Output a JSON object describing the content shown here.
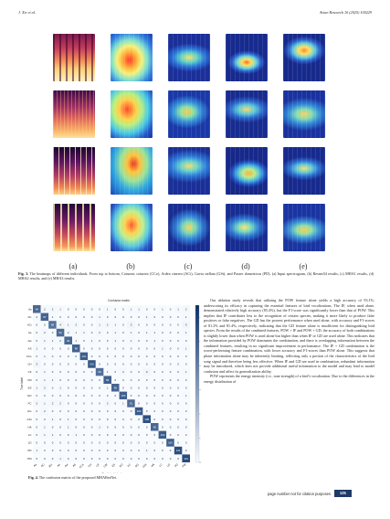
{
  "header": {
    "left": "J. Xie et al.",
    "right": "Avian Research 16 (2025) 100229"
  },
  "figure3": {
    "panel_labels": [
      "(a)",
      "(b)",
      "(c)",
      "(d)",
      "(e)"
    ],
    "caption_label": "Fig. 3.",
    "caption_text": " The heatmaps of different individuals. From top to bottom, Coturnix coturnix (CCo), Ardea cinerea (ACi), Gavia stellata (GSt), and Passer domesticus (PD). (a) Input spectrogram, (b) Resnet34 results, (c) MHA1 results, (d) MHA2 results, and (e) MHA3 results."
  },
  "figure4": {
    "caption_label": "Fig. 4.",
    "caption_text": " The confusion matrix of the proposed MHAResNet."
  },
  "chart_data": {
    "type": "heatmap",
    "title": "Confusion matrix",
    "xlabel": "Predicted label",
    "ylabel": "True label",
    "labels": [
      "Aa",
      "AC",
      "ACi",
      "Ae",
      "Aw",
      "AS",
      "CCo",
      "CH",
      "CF",
      "CM",
      "ES",
      "EO",
      "FC",
      "GG",
      "GSt",
      "HA",
      "LC",
      "LD",
      "PD",
      "PM"
    ],
    "colorbar_ticks": [
      0,
      20,
      40,
      60,
      80,
      100,
      120
    ],
    "vmax": 130,
    "matrix": [
      [
        94,
        2,
        2,
        1,
        0,
        0,
        0,
        0,
        0,
        1,
        0,
        0,
        1,
        1,
        0,
        0,
        1,
        0,
        1,
        2
      ],
      [
        2,
        97,
        1,
        0,
        0,
        0,
        0,
        0,
        1,
        0,
        0,
        0,
        0,
        0,
        1,
        0,
        0,
        0,
        0,
        1
      ],
      [
        0,
        0,
        88,
        4,
        1,
        2,
        0,
        0,
        1,
        2,
        1,
        0,
        3,
        0,
        0,
        0,
        0,
        0,
        0,
        3
      ],
      [
        0,
        2,
        0,
        92,
        2,
        1,
        1,
        0,
        2,
        0,
        1,
        0,
        1,
        0,
        1,
        1,
        0,
        0,
        0,
        1
      ],
      [
        0,
        1,
        1,
        2,
        94,
        1,
        0,
        1,
        0,
        0,
        1,
        0,
        1,
        0,
        0,
        1,
        0,
        0,
        0,
        0
      ],
      [
        1,
        0,
        0,
        0,
        0,
        98,
        0,
        0,
        0,
        0,
        0,
        0,
        0,
        0,
        0,
        0,
        1,
        0,
        0,
        1
      ],
      [
        0,
        1,
        0,
        0,
        0,
        0,
        101,
        0,
        0,
        0,
        0,
        0,
        0,
        0,
        0,
        0,
        0,
        0,
        0,
        0
      ],
      [
        3,
        0,
        0,
        0,
        0,
        0,
        0,
        105,
        0,
        0,
        0,
        0,
        0,
        0,
        0,
        0,
        0,
        0,
        0,
        0
      ],
      [
        0,
        1,
        0,
        0,
        0,
        0,
        0,
        0,
        90,
        1,
        0,
        2,
        0,
        0,
        3,
        0,
        0,
        0,
        0,
        1
      ],
      [
        0,
        1,
        1,
        0,
        0,
        0,
        0,
        0,
        0,
        99,
        0,
        0,
        0,
        0,
        0,
        0,
        0,
        0,
        0,
        0
      ],
      [
        1,
        2,
        0,
        1,
        0,
        0,
        0,
        0,
        0,
        1,
        96,
        0,
        0,
        0,
        0,
        0,
        0,
        0,
        0,
        0
      ],
      [
        0,
        0,
        0,
        0,
        0,
        0,
        0,
        0,
        0,
        0,
        0,
        100,
        0,
        0,
        0,
        0,
        0,
        0,
        0,
        1
      ],
      [
        2,
        1,
        2,
        2,
        0,
        0,
        0,
        0,
        0,
        2,
        0,
        1,
        91,
        0,
        0,
        0,
        0,
        0,
        0,
        0
      ],
      [
        0,
        2,
        0,
        0,
        0,
        0,
        0,
        0,
        0,
        0,
        0,
        0,
        0,
        104,
        0,
        0,
        0,
        0,
        0,
        0
      ],
      [
        0,
        0,
        1,
        0,
        1,
        0,
        0,
        0,
        0,
        0,
        0,
        0,
        0,
        0,
        108,
        0,
        0,
        0,
        0,
        0
      ],
      [
        0,
        1,
        0,
        0,
        1,
        0,
        0,
        0,
        1,
        0,
        0,
        0,
        0,
        0,
        0,
        95,
        0,
        0,
        0,
        0
      ],
      [
        0,
        1,
        1,
        0,
        0,
        1,
        0,
        0,
        0,
        0,
        0,
        0,
        0,
        0,
        0,
        0,
        102,
        0,
        0,
        0
      ],
      [
        0,
        0,
        0,
        0,
        0,
        0,
        0,
        0,
        0,
        0,
        0,
        0,
        0,
        0,
        0,
        0,
        0,
        100,
        0,
        0
      ],
      [
        1,
        0,
        0,
        0,
        0,
        0,
        0,
        0,
        0,
        0,
        0,
        0,
        0,
        0,
        1,
        0,
        0,
        0,
        111,
        0
      ],
      [
        0,
        0,
        0,
        1,
        0,
        0,
        0,
        0,
        0,
        0,
        0,
        0,
        0,
        0,
        0,
        0,
        0,
        0,
        0,
        112
      ]
    ]
  },
  "body": {
    "p1": "Our ablation study reveals that utilizing the POW feature alone yields a high accuracy of 93.1%, underscoring its efficacy in capturing the essential features of bird vocalizations. The IF, when used alone, demonstrated relatively high accuracy (85.4%), but the F1-score was significantly lower than that of POW. This implies that IF contributes less to the recognition of certain species, making it more likely to produce false positives or false negatives. The GD has the poorest performance when used alone, with accuracy and F1-scores of 81.2% and 81.4%, respectively, indicating that the GD feature alone is insufficient for distinguishing bird species. From the results of the combined features, POW + IF and POW + GD, the accuracy of both combinations is slightly lower than when POW is used alone but higher than when IF or GD are used alone. This indicates that the information provided by POW dominates the combination, and there is overlapping information between the combined features, resulting in no significant improvement in performance. The IF + GD combination is the worst-performing feature combination, with lower accuracy and F1-scores than POW alone. This suggests that phase information alone may be inherently limiting, reflecting only a portion of the characteristics of the bird song signal and therefore being less effective. When IF and GD are used in combination, redundant information may be introduced, which does not provide additional useful information to the model and may lead to model confusion and affect its generalization ability.",
    "p2": "POW represents the energy intensity (i.e., tone strength) of a bird’s vocalization. Due to the differences in the energy distribution of"
  },
  "footer": {
    "note": "page number not for citation purposes",
    "page": "125"
  }
}
